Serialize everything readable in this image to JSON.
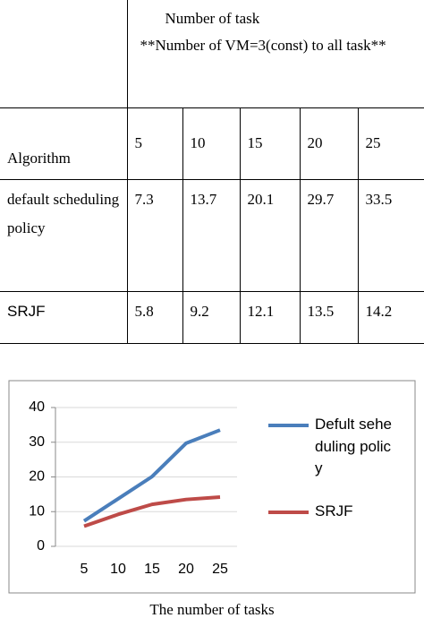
{
  "table": {
    "header": {
      "group_title": "Number  of task",
      "note": "**Number of VM=3(const) to all task**",
      "row_label": "Algorithm",
      "columns": [
        5,
        10,
        15,
        20,
        25
      ]
    },
    "rows": [
      {
        "label": "default scheduling policy",
        "cells": [
          7.3,
          13.7,
          20.1,
          29.7,
          33.5
        ]
      },
      {
        "label": "SRJF",
        "cells": [
          5.8,
          9.2,
          12.1,
          13.5,
          14.2
        ]
      }
    ]
  },
  "chart_data": {
    "type": "line",
    "xlabel": "The number of tasks",
    "categories": [
      "5",
      "10",
      "15",
      "20",
      "25"
    ],
    "series": [
      {
        "name": "Defult seheduling policy",
        "color": "#4a7ebb",
        "values": [
          7.3,
          13.7,
          20.1,
          29.7,
          33.5
        ]
      },
      {
        "name": "SRJF",
        "color": "#be4b48",
        "values": [
          5.8,
          9.2,
          12.1,
          13.5,
          14.2
        ]
      }
    ],
    "ylim": [
      0,
      40
    ],
    "yticks": [
      0,
      10,
      20,
      30,
      40
    ],
    "grid": true
  }
}
